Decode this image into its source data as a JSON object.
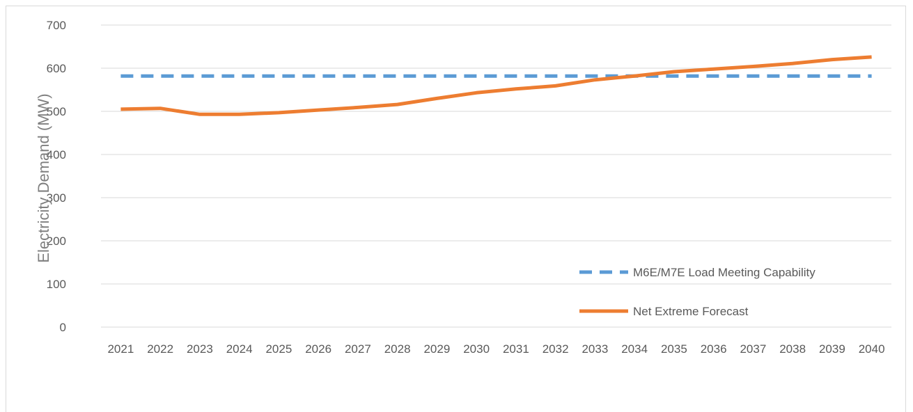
{
  "chart_data": {
    "type": "line",
    "title": "",
    "xlabel": "",
    "ylabel": "Electricity Demand (MW)",
    "ylim": [
      0,
      700
    ],
    "y_ticks": [
      0,
      100,
      200,
      300,
      400,
      500,
      600,
      700
    ],
    "grid": "horizontal",
    "legend_position": "bottom-right",
    "categories": [
      "2021",
      "2022",
      "2023",
      "2024",
      "2025",
      "2026",
      "2027",
      "2028",
      "2029",
      "2030",
      "2031",
      "2032",
      "2033",
      "2034",
      "2035",
      "2036",
      "2037",
      "2038",
      "2039",
      "2040"
    ],
    "series": [
      {
        "name": "M6E/M7E Load Meeting Capability",
        "style": "dashed",
        "color": "#5b9bd5",
        "values": [
          582,
          582,
          582,
          582,
          582,
          582,
          582,
          582,
          582,
          582,
          582,
          582,
          582,
          582,
          582,
          582,
          582,
          582,
          582,
          582
        ]
      },
      {
        "name": "Net Extreme Forecast",
        "style": "solid",
        "color": "#ed7d31",
        "values": [
          505,
          507,
          493,
          493,
          497,
          503,
          509,
          516,
          530,
          543,
          552,
          559,
          573,
          582,
          592,
          598,
          604,
          611,
          620,
          626
        ]
      }
    ]
  }
}
